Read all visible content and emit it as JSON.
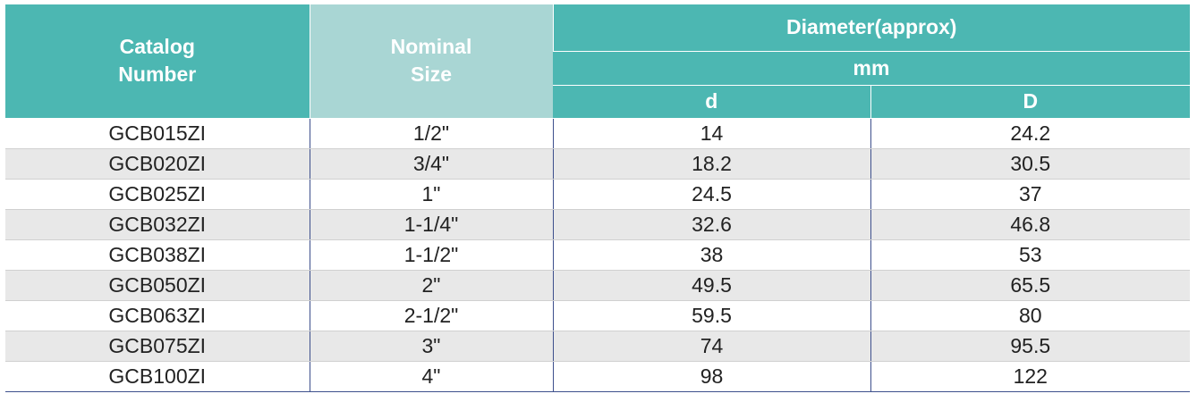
{
  "table": {
    "header": {
      "catalog": "Catalog\nNumber",
      "nominal": "Nominal\nSize",
      "diameter": "Diameter(approx)",
      "unit": "mm",
      "d": "d",
      "D": "D"
    },
    "rows": [
      [
        "GCB015ZI",
        "1/2\"",
        14,
        24.2
      ],
      [
        "GCB020ZI",
        "3/4\"",
        18.2,
        30.5
      ],
      [
        "GCB025ZI",
        "1\"",
        24.5,
        37
      ],
      [
        "GCB032ZI",
        "1-1/4\"",
        32.6,
        46.8
      ],
      [
        "GCB038ZI",
        "1-1/2\"",
        38,
        53
      ],
      [
        "GCB050ZI",
        "2\"",
        49.5,
        65.5
      ],
      [
        "GCB063ZI",
        "2-1/2\"",
        59.5,
        80
      ],
      [
        "GCB075ZI",
        "3\"",
        74,
        95.5
      ],
      [
        "GCB100ZI",
        "4\"",
        98,
        122
      ]
    ]
  }
}
